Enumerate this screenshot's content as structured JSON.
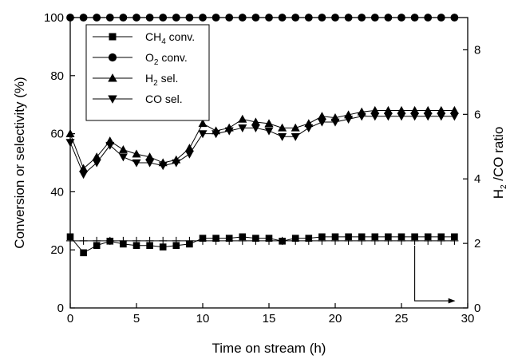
{
  "chart_data": {
    "type": "line",
    "xlabel": "Time on stream (h)",
    "ylabel": "Conversion or selectivity (%)",
    "y2label_main": "H",
    "y2label_sub": "2",
    "y2label_rest": " /CO ratio",
    "xlim": [
      0,
      30
    ],
    "ylim": [
      0,
      100
    ],
    "y2lim": [
      0,
      9
    ],
    "xticks": [
      "0",
      "5",
      "10",
      "15",
      "20",
      "25",
      "30"
    ],
    "yticks": [
      "0",
      "20",
      "40",
      "60",
      "80",
      "100"
    ],
    "y2ticks": [
      "0",
      "2",
      "4",
      "6",
      "8"
    ],
    "legend_position": "top-left",
    "series": [
      {
        "name": "CH4 conv.",
        "legend_main": "CH",
        "legend_sub": "4",
        "legend_rest": " conv.",
        "marker": "square",
        "axis": "left",
        "x": [
          0,
          1,
          2,
          3,
          4,
          5,
          6,
          7,
          8,
          9,
          10,
          11,
          12,
          13,
          14,
          15,
          16,
          17,
          18,
          19,
          20,
          21,
          22,
          23,
          24,
          25,
          26,
          27,
          28,
          29
        ],
        "y": [
          24.5,
          19,
          21.5,
          23,
          22,
          21.5,
          21.5,
          21,
          21.5,
          22,
          24,
          24,
          24,
          24.5,
          24,
          24,
          23,
          24,
          24,
          24.5,
          24.5,
          24.5,
          24.5,
          24.5,
          24.5,
          24.5,
          24.5,
          24.5,
          24.5,
          24.5
        ]
      },
      {
        "name": "O2 conv.",
        "legend_main": "O",
        "legend_sub": "2",
        "legend_rest": " conv.",
        "marker": "circle",
        "axis": "left",
        "x": [
          0,
          1,
          2,
          3,
          4,
          5,
          6,
          7,
          8,
          9,
          10,
          11,
          12,
          13,
          14,
          15,
          16,
          17,
          18,
          19,
          20,
          21,
          22,
          23,
          24,
          25,
          26,
          27,
          28,
          29
        ],
        "y": [
          100,
          100,
          100,
          100,
          100,
          100,
          100,
          100,
          100,
          100,
          100,
          100,
          100,
          100,
          100,
          100,
          100,
          100,
          100,
          100,
          100,
          100,
          100,
          100,
          100,
          100,
          100,
          100,
          100,
          100
        ]
      },
      {
        "name": "H2 sel.",
        "legend_main": "H",
        "legend_sub": "2",
        "legend_rest": " sel.",
        "marker": "triangle-up",
        "axis": "left",
        "x": [
          0,
          1,
          2,
          3,
          4,
          5,
          6,
          7,
          8,
          9,
          10,
          11,
          12,
          13,
          14,
          15,
          16,
          17,
          18,
          19,
          20,
          21,
          22,
          23,
          24,
          25,
          26,
          27,
          28,
          29
        ],
        "y": [
          60,
          48,
          52,
          57.5,
          54.5,
          53,
          52,
          50,
          51,
          55,
          63.5,
          61,
          62,
          65,
          64,
          63.5,
          62,
          62,
          63.5,
          66,
          65.5,
          66.5,
          67.5,
          68,
          68,
          68,
          68,
          68,
          68,
          68
        ]
      },
      {
        "name": "CO sel.",
        "legend_main": "CO sel.",
        "legend_sub": "",
        "legend_rest": "",
        "marker": "triangle-down",
        "axis": "left",
        "x": [
          0,
          1,
          2,
          3,
          4,
          5,
          6,
          7,
          8,
          9,
          10,
          11,
          12,
          13,
          14,
          15,
          16,
          17,
          18,
          19,
          20,
          21,
          22,
          23,
          24,
          25,
          26,
          27,
          28,
          29
        ],
        "y": [
          57,
          46,
          50,
          56,
          52,
          50,
          50,
          49,
          50,
          53,
          60,
          60,
          61,
          62,
          62,
          61,
          59,
          59,
          62,
          64,
          64,
          65,
          66,
          66,
          66,
          66,
          66,
          66,
          66,
          66
        ]
      },
      {
        "marker": "plus",
        "axis": "right",
        "x": [
          0,
          1,
          2,
          3,
          4,
          5,
          6,
          7,
          8,
          9,
          10,
          11,
          12,
          13,
          14,
          15,
          16,
          17,
          18,
          19,
          20,
          21,
          22,
          23,
          24,
          25,
          26,
          27,
          28,
          29
        ],
        "y": [
          2.08,
          2.08,
          2.08,
          2.08,
          2.08,
          2.08,
          2.08,
          2.08,
          2.08,
          2.08,
          2.08,
          2.08,
          2.08,
          2.08,
          2.08,
          2.08,
          2.08,
          2.08,
          2.08,
          2.08,
          2.08,
          2.08,
          2.08,
          2.08,
          2.08,
          2.08,
          2.08,
          2.08,
          2.08,
          2.08
        ]
      }
    ],
    "annotation_arrow": {
      "from": [
        26,
        2.08
      ],
      "corner": [
        26,
        0.22
      ],
      "to": [
        29,
        0.22
      ],
      "axis": "right"
    }
  }
}
